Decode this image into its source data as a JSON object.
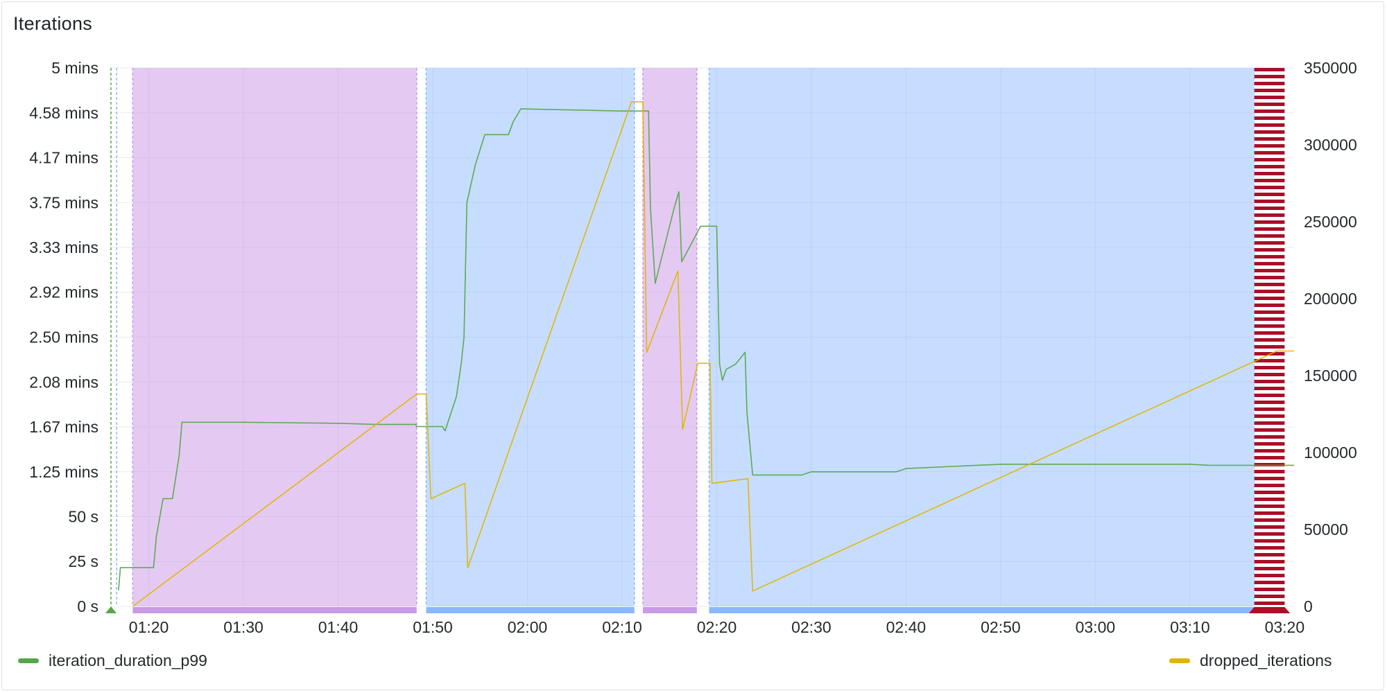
{
  "panel": {
    "title": "Iterations"
  },
  "colors": {
    "series_duration": "#56a64b",
    "series_dropped": "#e0b400",
    "region_purple": "#c99ae6",
    "region_purple_fill": "rgba(202,149,229,0.5)",
    "region_blue": "#8ab8ff",
    "region_blue_fill": "rgba(138,184,255,0.48)",
    "alert_red": "#a90f27",
    "grid": "#e8eaed"
  },
  "chart_data": {
    "type": "line",
    "x_range": [
      "01:16",
      "03:21"
    ],
    "x_ticks": [
      "01:20",
      "01:30",
      "01:40",
      "01:50",
      "02:00",
      "02:10",
      "02:20",
      "02:30",
      "02:40",
      "02:50",
      "03:00",
      "03:10",
      "03:20"
    ],
    "y_left": {
      "unit": "minutes",
      "range": [
        0,
        5
      ],
      "tick_labels": [
        "0 s",
        "25 s",
        "50 s",
        "1.25 mins",
        "1.67 mins",
        "2.08 mins",
        "2.50 mins",
        "2.92 mins",
        "3.33 mins",
        "3.75 mins",
        "4.17 mins",
        "4.58 mins",
        "5 mins"
      ],
      "tick_values": [
        0,
        0.4167,
        0.8333,
        1.25,
        1.6667,
        2.0833,
        2.5,
        2.9167,
        3.3333,
        3.75,
        4.1667,
        4.5833,
        5
      ]
    },
    "y_right": {
      "range": [
        0,
        350000
      ],
      "tick_labels": [
        "0",
        "50000",
        "100000",
        "150000",
        "200000",
        "250000",
        "300000",
        "350000"
      ],
      "tick_values": [
        0,
        50000,
        100000,
        150000,
        200000,
        250000,
        300000,
        350000
      ]
    },
    "grid": true,
    "legend_placement": "bottom",
    "regions": [
      {
        "start": "01:18.3",
        "end": "01:48.3",
        "color": "purple"
      },
      {
        "start": "01:49.3",
        "end": "02:11.3",
        "color": "blue"
      },
      {
        "start": "02:12.2",
        "end": "02:17.9",
        "color": "purple"
      },
      {
        "start": "02:19.2",
        "end": "03:16.8",
        "color": "blue"
      },
      {
        "start": "03:16.8",
        "end": "03:20.0",
        "color": "red-alert"
      }
    ],
    "event_markers": [
      "01:16.0",
      "01:16.6"
    ],
    "series": [
      {
        "name": "iteration_duration_p99",
        "axis": "left",
        "color": "#56a64b",
        "points": [
          [
            "01:16.8",
            0.15
          ],
          [
            "01:17.0",
            0.36
          ],
          [
            "01:19.0",
            0.36
          ],
          [
            "01:20.5",
            0.36
          ],
          [
            "01:20.8",
            0.65
          ],
          [
            "01:21.5",
            1.0
          ],
          [
            "01:22.5",
            1.0
          ],
          [
            "01:23.2",
            1.4
          ],
          [
            "01:23.5",
            1.71
          ],
          [
            "01:30.0",
            1.71
          ],
          [
            "01:40.0",
            1.7
          ],
          [
            "01:44.0",
            1.69
          ],
          [
            "01:48.2",
            1.69
          ],
          [
            "01:48.3",
            1.67
          ],
          [
            "01:51.0",
            1.67
          ],
          [
            "01:51.3",
            1.63
          ],
          [
            "01:52.5",
            1.95
          ],
          [
            "01:53.0",
            2.25
          ],
          [
            "01:53.3",
            2.5
          ],
          [
            "01:53.6",
            3.75
          ],
          [
            "01:54.5",
            4.1
          ],
          [
            "01:55.5",
            4.38
          ],
          [
            "01:58.0",
            4.38
          ],
          [
            "01:58.5",
            4.5
          ],
          [
            "01:59.3",
            4.62
          ],
          [
            "02:10.0",
            4.6
          ],
          [
            "02:12.8",
            4.6
          ],
          [
            "02:13.0",
            3.7
          ],
          [
            "02:13.5",
            3.0
          ],
          [
            "02:14.5",
            3.35
          ],
          [
            "02:15.5",
            3.7
          ],
          [
            "02:16.0",
            3.85
          ],
          [
            "02:16.3",
            3.2
          ],
          [
            "02:18.3",
            3.53
          ],
          [
            "02:20.0",
            3.53
          ],
          [
            "02:20.3",
            2.25
          ],
          [
            "02:20.6",
            2.1
          ],
          [
            "02:21.0",
            2.2
          ],
          [
            "02:22.0",
            2.25
          ],
          [
            "02:23.0",
            2.36
          ],
          [
            "02:23.2",
            1.8
          ],
          [
            "02:23.8",
            1.22
          ],
          [
            "02:29.0",
            1.22
          ],
          [
            "02:30.0",
            1.25
          ],
          [
            "02:39.0",
            1.25
          ],
          [
            "02:40.0",
            1.28
          ],
          [
            "02:45.0",
            1.3
          ],
          [
            "02:50.0",
            1.32
          ],
          [
            "03:10.0",
            1.32
          ],
          [
            "03:12.0",
            1.31
          ],
          [
            "03:21.0",
            1.31
          ]
        ]
      },
      {
        "name": "dropped_iterations",
        "axis": "right",
        "color": "#e0b400",
        "points": [
          [
            "01:18.3",
            0
          ],
          [
            "01:48.3",
            138000
          ],
          [
            "01:49.3",
            138000
          ],
          [
            "01:49.8",
            70000
          ],
          [
            "01:53.4",
            80000
          ],
          [
            "01:53.7",
            25000
          ],
          [
            "02:11.0",
            328000
          ],
          [
            "02:12.2",
            328000
          ],
          [
            "02:12.6",
            165000
          ],
          [
            "02:15.9",
            218000
          ],
          [
            "02:16.4",
            115000
          ],
          [
            "02:18.0",
            158000
          ],
          [
            "02:19.3",
            158000
          ],
          [
            "02:19.5",
            80000
          ],
          [
            "02:23.3",
            83000
          ],
          [
            "02:23.8",
            10000
          ],
          [
            "03:19.2",
            166000
          ],
          [
            "03:21.0",
            166000
          ]
        ]
      }
    ]
  }
}
